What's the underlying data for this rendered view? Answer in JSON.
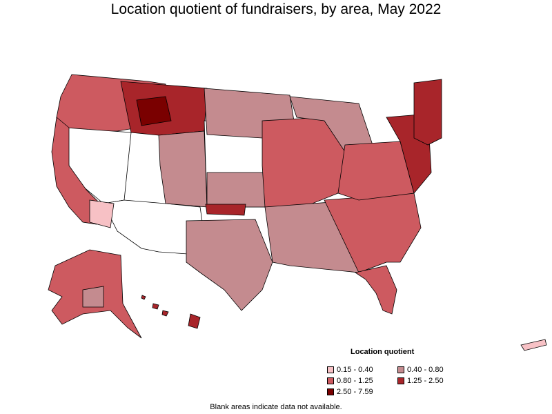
{
  "title": "Location quotient of fundraisers, by area, May 2022",
  "legend": {
    "title": "Location quotient",
    "items": [
      {
        "label": "0.15 - 0.40",
        "color": "#f7c1c5"
      },
      {
        "label": "0.40 - 0.80",
        "color": "#c48b8f"
      },
      {
        "label": "0.80 - 1.25",
        "color": "#cd5a60"
      },
      {
        "label": "1.25 - 2.50",
        "color": "#a8252a"
      },
      {
        "label": "2.50 - 7.59",
        "color": "#7a0000"
      }
    ]
  },
  "footnote": "Blank areas indicate data not available.",
  "map_colors": {
    "blank": "#ffffff",
    "outline": "#000000"
  }
}
